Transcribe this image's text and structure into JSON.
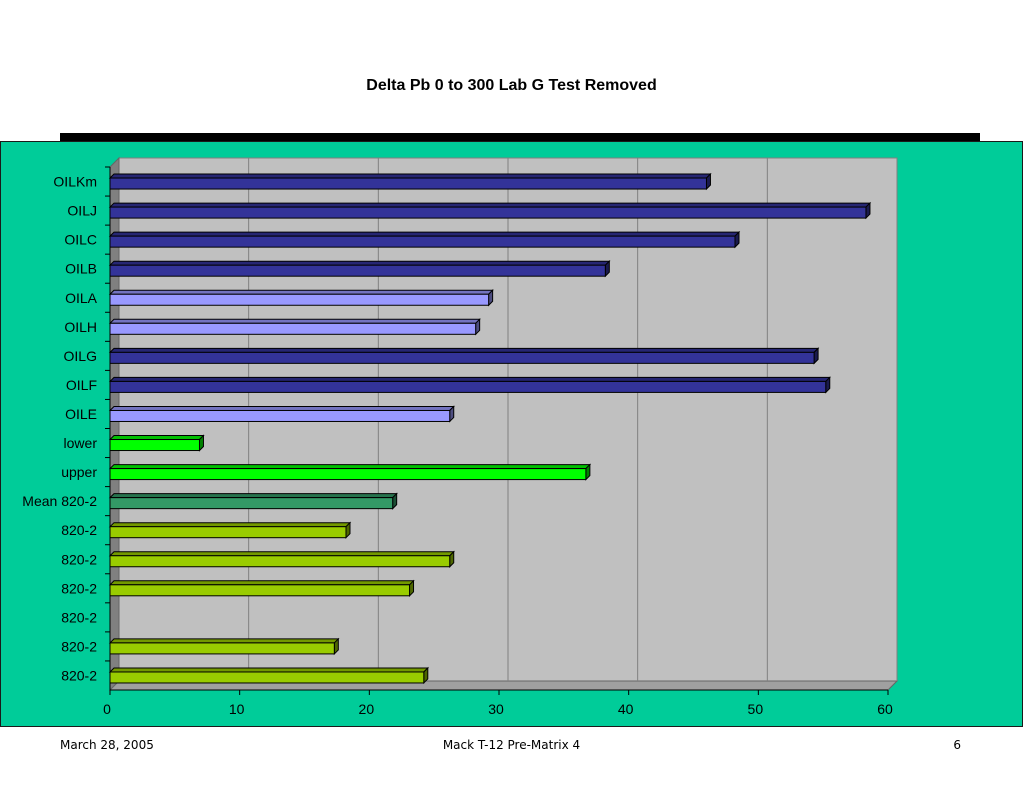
{
  "slide": {
    "footer_date": "March 28, 2005",
    "footer_title": "Mack T-12 Pre-Matrix 4",
    "page_number": "6"
  },
  "colors": {
    "panel": "#00cc99",
    "plot_area": "#c0c0c0",
    "navy": "#333399",
    "lavender": "#9999ff",
    "bright_green": "#00ff00",
    "dark_green": "#339966",
    "yellow_green": "#99cc00"
  },
  "chart_data": {
    "type": "bar",
    "orientation": "horizontal",
    "title": "Delta Pb 0 to 300 Lab G Test Removed",
    "xlabel": "",
    "ylabel": "",
    "xlim": [
      0,
      60
    ],
    "xticks": [
      0,
      10,
      20,
      30,
      40,
      50,
      60
    ],
    "grid": true,
    "categories": [
      "OILKm",
      "OILJ",
      "OILC",
      "OILB",
      "OILA",
      "OILH",
      "OILG",
      "OILF",
      "OILE",
      "lower",
      "upper",
      "Mean 820-2",
      "820-2",
      "820-2",
      "820-2",
      "820-2",
      "820-2",
      "820-2"
    ],
    "values": [
      46,
      58.3,
      48.2,
      38.2,
      29.2,
      28.2,
      54.3,
      55.2,
      26.2,
      6.9,
      36.7,
      21.8,
      18.2,
      26.2,
      23.1,
      null,
      17.3,
      24.2
    ],
    "bar_colors": [
      "navy",
      "navy",
      "navy",
      "navy",
      "lavender",
      "lavender",
      "navy",
      "navy",
      "lavender",
      "bright_green",
      "bright_green",
      "dark_green",
      "yellow_green",
      "yellow_green",
      "yellow_green",
      "yellow_green",
      "yellow_green",
      "yellow_green"
    ]
  }
}
